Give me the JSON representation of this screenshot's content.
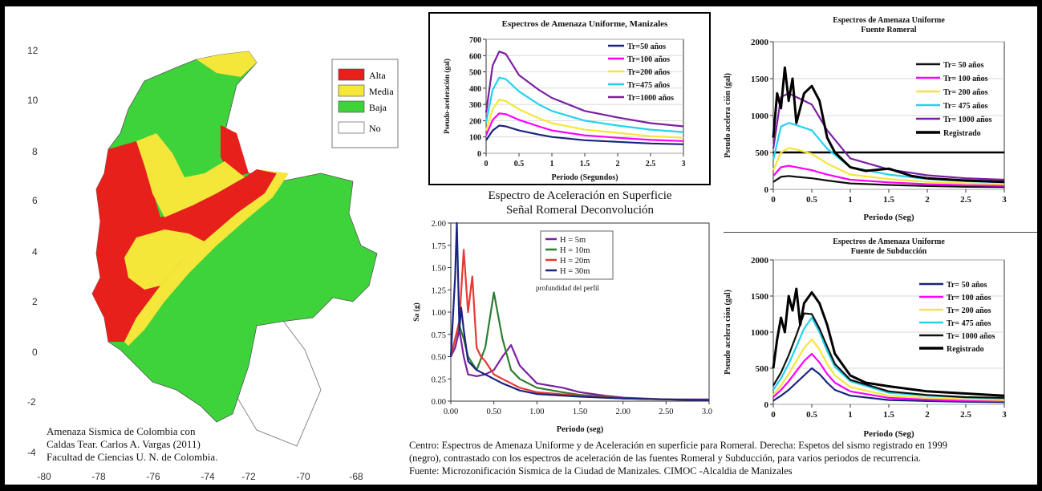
{
  "map_panel": {
    "x_ticks": [
      "-80",
      "-78",
      "-76",
      "-74",
      "-72",
      "-70",
      "-68"
    ],
    "y_ticks": [
      "12",
      "10",
      "8",
      "6",
      "4",
      "2",
      "0",
      "-2",
      "-4"
    ],
    "legend": [
      {
        "label": "Alta",
        "color": "#e8201c"
      },
      {
        "label": "Media",
        "color": "#f5e63a"
      },
      {
        "label": "Baja",
        "color": "#3ed33a"
      },
      {
        "label": "No",
        "color": "#ffffff"
      }
    ],
    "caption_lines": [
      "Amenaza Sismica de Colombia con",
      "Caldas Tear. Carlos A. Vargas (2011)",
      "Facultad de Ciencias U. N. de Colombia."
    ]
  },
  "captions": {
    "center_lines": [
      "Centro: Espectros de Amenaza Uniforme y de Aceleración en superficie para Romeral. Derecha: Espetos del sismo registrado en 1999",
      "(negro), contrastado con los espectros de aceleración de las fuentes Romeral y Subducción, para varios periodos de recurrencia.",
      "Fuente: Microzonificación Sismica de la Ciudad de Manizales. CIMOC -Alcaldia de Manizales"
    ]
  },
  "chart_data": [
    {
      "id": "manizales",
      "type": "line",
      "title": "Espectros de Amenaza Uniforme, Manizales",
      "xlabel": "Periodo (Segundos)",
      "ylabel": "Pseudo-aceleración (gal)",
      "xlim": [
        0,
        3
      ],
      "ylim": [
        0,
        700
      ],
      "xticks": [
        0,
        0.5,
        1,
        1.5,
        2,
        2.5,
        3
      ],
      "yticks": [
        0,
        100,
        200,
        300,
        400,
        500,
        600,
        700
      ],
      "xtick_labels": [
        "0",
        "0.5",
        "1",
        "1.5",
        "2",
        "2.5",
        "3"
      ],
      "ytick_labels": [
        "0",
        "100",
        "200",
        "300",
        "400",
        "500",
        "600",
        "700"
      ],
      "x": [
        0,
        0.1,
        0.2,
        0.3,
        0.5,
        0.8,
        1.0,
        1.5,
        2.0,
        2.5,
        3.0
      ],
      "series": [
        {
          "name": "Tr=50 años",
          "color": "#1a237e",
          "values": [
            80,
            140,
            170,
            165,
            140,
            115,
            100,
            80,
            70,
            60,
            55
          ]
        },
        {
          "name": "Tr=100 años",
          "color": "#ff00ff",
          "values": [
            110,
            205,
            245,
            240,
            205,
            165,
            140,
            110,
            95,
            82,
            75
          ]
        },
        {
          "name": "Tr=200 años",
          "color": "#f5e63a",
          "values": [
            140,
            270,
            330,
            320,
            270,
            215,
            185,
            145,
            125,
            105,
            95
          ]
        },
        {
          "name": "Tr=475 años",
          "color": "#22d3ee",
          "values": [
            190,
            390,
            465,
            455,
            380,
            300,
            260,
            200,
            170,
            145,
            130
          ]
        },
        {
          "name": "Tr=1000 años",
          "color": "#7b1fa2",
          "values": [
            250,
            540,
            625,
            610,
            480,
            390,
            340,
            260,
            220,
            185,
            165
          ]
        }
      ]
    },
    {
      "id": "superficie",
      "type": "line",
      "title": "Espectro de Aceleración en Superficie",
      "subtitle": "Señal Romeral Deconvolución",
      "xlabel": "Periodo (seg)",
      "ylabel": "Sa (g)",
      "annotation": "profundidad del perfil",
      "xlim": [
        0,
        3
      ],
      "ylim": [
        0,
        2
      ],
      "xticks": [
        0,
        0.5,
        1,
        1.5,
        2,
        2.5,
        3
      ],
      "yticks": [
        0,
        0.25,
        0.5,
        0.75,
        1,
        1.25,
        1.5,
        1.75,
        2
      ],
      "xtick_labels": [
        "0.00",
        "0.50",
        "1.00",
        "1.50",
        "2.00",
        "2.50",
        "3.00"
      ],
      "ytick_labels": [
        "0.00",
        "0.25",
        "0.50",
        "0.75",
        "1.00",
        "1.25",
        "1.50",
        "1.75",
        "2.00"
      ],
      "series": [
        {
          "name": "H = 5m",
          "color": "#7b1fa2",
          "x": [
            0,
            0.05,
            0.1,
            0.15,
            0.2,
            0.3,
            0.4,
            0.5,
            0.6,
            0.7,
            0.8,
            1.0,
            1.3,
            1.5,
            1.8,
            2.0,
            2.5,
            3.0
          ],
          "values": [
            0.5,
            0.6,
            0.8,
            0.5,
            0.3,
            0.28,
            0.3,
            0.35,
            0.5,
            0.63,
            0.4,
            0.2,
            0.15,
            0.1,
            0.06,
            0.04,
            0.02,
            0.02
          ]
        },
        {
          "name": "H = 10m",
          "color": "#2e7d32",
          "x": [
            0,
            0.05,
            0.1,
            0.15,
            0.2,
            0.3,
            0.4,
            0.5,
            0.6,
            0.7,
            0.8,
            1.0,
            1.3,
            1.5,
            1.8,
            2.0,
            2.5,
            3.0
          ],
          "values": [
            0.5,
            0.7,
            0.85,
            0.7,
            0.5,
            0.35,
            0.6,
            1.22,
            0.7,
            0.35,
            0.25,
            0.15,
            0.1,
            0.07,
            0.05,
            0.03,
            0.02,
            0.01
          ]
        },
        {
          "name": "H = 20m",
          "color": "#e53935",
          "x": [
            0,
            0.05,
            0.1,
            0.15,
            0.2,
            0.25,
            0.3,
            0.35,
            0.4,
            0.5,
            0.6,
            0.8,
            1.0,
            1.5,
            2.0,
            2.5,
            3.0
          ],
          "values": [
            0.5,
            0.7,
            0.9,
            1.7,
            1.0,
            1.4,
            0.6,
            0.5,
            0.45,
            0.3,
            0.25,
            0.15,
            0.1,
            0.06,
            0.03,
            0.02,
            0.01
          ]
        },
        {
          "name": "H = 30m",
          "color": "#1a237e",
          "x": [
            0,
            0.05,
            0.07,
            0.1,
            0.12,
            0.15,
            0.2,
            0.3,
            0.4,
            0.5,
            0.6,
            0.8,
            1.0,
            1.5,
            2.0,
            2.5,
            3.0
          ],
          "values": [
            0.5,
            1.4,
            2.0,
            0.8,
            1.05,
            0.8,
            0.45,
            0.35,
            0.3,
            0.25,
            0.2,
            0.12,
            0.08,
            0.05,
            0.03,
            0.02,
            0.01
          ]
        }
      ]
    },
    {
      "id": "romeral",
      "type": "line",
      "title": "Espectros de Amenaza Uniforme",
      "subtitle": "Fuente Romeral",
      "xlabel": "Periodo (Seg)",
      "ylabel": "Pseudo acelera ción (gal)",
      "xlim": [
        0,
        3
      ],
      "ylim": [
        0,
        2000
      ],
      "xticks": [
        0,
        0.5,
        1,
        1.5,
        2,
        2.5,
        3
      ],
      "yticks": [
        0,
        500,
        1000,
        1500,
        2000
      ],
      "xtick_labels": [
        "0",
        "0.5",
        "1",
        "1.5",
        "2",
        "2.5",
        "3"
      ],
      "ytick_labels": [
        "0",
        "500",
        "1000",
        "1500",
        "2000"
      ],
      "x": [
        0,
        0.1,
        0.2,
        0.3,
        0.5,
        0.7,
        1.0,
        1.5,
        2.0,
        2.5,
        3.0
      ],
      "series": [
        {
          "name": "Tr= 50 años",
          "color": "#111111",
          "values": [
            100,
            170,
            180,
            170,
            150,
            120,
            80,
            60,
            45,
            35,
            30
          ]
        },
        {
          "name": "Tr= 100 años",
          "color": "#ff00ff",
          "values": [
            180,
            300,
            320,
            300,
            260,
            200,
            130,
            95,
            70,
            55,
            48
          ]
        },
        {
          "name": "Tr= 200 años",
          "color": "#f5e63a",
          "values": [
            260,
            500,
            560,
            540,
            480,
            350,
            200,
            140,
            100,
            80,
            70
          ]
        },
        {
          "name": "Tr= 475 años",
          "color": "#22d3ee",
          "values": [
            400,
            850,
            900,
            870,
            800,
            550,
            300,
            200,
            140,
            110,
            95
          ]
        },
        {
          "name": "Tr= 1000 años",
          "color": "#7b1fa2",
          "values": [
            550,
            1250,
            1300,
            1250,
            1150,
            800,
            420,
            270,
            190,
            150,
            130
          ]
        },
        {
          "name": "Registrado",
          "color": "#000000",
          "x": [
            0,
            0.05,
            0.1,
            0.15,
            0.2,
            0.25,
            0.3,
            0.4,
            0.5,
            0.6,
            0.7,
            0.8,
            1.0,
            1.2,
            1.5,
            1.8,
            2.0,
            2.5,
            3.0
          ],
          "values": [
            700,
            1300,
            1100,
            1650,
            1200,
            1500,
            900,
            1300,
            1400,
            1200,
            700,
            500,
            300,
            250,
            280,
            180,
            150,
            120,
            100
          ]
        }
      ],
      "reference_line": 500
    },
    {
      "id": "subduccion",
      "type": "line",
      "title": "Espectros de Amenaza Uniforme",
      "subtitle": "Fuente de Subducción",
      "xlabel": "Periodo (Seg)",
      "ylabel": "Pseudo acelera ción (gal)",
      "xlim": [
        0,
        3
      ],
      "ylim": [
        0,
        2000
      ],
      "xticks": [
        0,
        0.5,
        1,
        1.5,
        2,
        2.5,
        3
      ],
      "yticks": [
        0,
        500,
        1000,
        1500,
        2000
      ],
      "xtick_labels": [
        "0",
        "0.5",
        "1",
        "1.5",
        "2",
        "2.5",
        "3"
      ],
      "ytick_labels": [
        "0",
        "500",
        "1000",
        "1500",
        "2000"
      ],
      "x": [
        0,
        0.1,
        0.2,
        0.3,
        0.4,
        0.5,
        0.6,
        0.7,
        0.8,
        1.0,
        1.5,
        2.0,
        2.5,
        3.0
      ],
      "series": [
        {
          "name": "Tr= 50 años",
          "color": "#1a237e",
          "values": [
            50,
            120,
            200,
            300,
            400,
            500,
            420,
            300,
            200,
            120,
            60,
            45,
            35,
            30
          ]
        },
        {
          "name": "Tr= 100 años",
          "color": "#ff00ff",
          "values": [
            100,
            200,
            320,
            460,
            600,
            700,
            580,
            420,
            300,
            180,
            90,
            65,
            50,
            45
          ]
        },
        {
          "name": "Tr= 200 años",
          "color": "#f5e63a",
          "values": [
            130,
            260,
            420,
            600,
            780,
            900,
            760,
            560,
            400,
            240,
            120,
            90,
            70,
            60
          ]
        },
        {
          "name": "Tr= 475 años",
          "color": "#22d3ee",
          "values": [
            200,
            360,
            560,
            800,
            1050,
            1200,
            1000,
            740,
            520,
            320,
            160,
            120,
            95,
            80
          ]
        },
        {
          "name": "Tr= 1000 años",
          "color": "#111111",
          "values": [
            260,
            440,
            680,
            960,
            1260,
            1250,
            1050,
            800,
            560,
            340,
            180,
            130,
            100,
            90
          ]
        },
        {
          "name": "Registrado",
          "color": "#000000",
          "x": [
            0,
            0.05,
            0.1,
            0.15,
            0.2,
            0.25,
            0.3,
            0.35,
            0.4,
            0.5,
            0.6,
            0.7,
            0.8,
            1.0,
            1.2,
            1.5,
            2.0,
            2.5,
            3.0
          ],
          "values": [
            500,
            900,
            1200,
            1000,
            1500,
            1300,
            1600,
            1100,
            1400,
            1550,
            1400,
            1100,
            700,
            400,
            300,
            250,
            180,
            150,
            120
          ]
        }
      ]
    }
  ]
}
